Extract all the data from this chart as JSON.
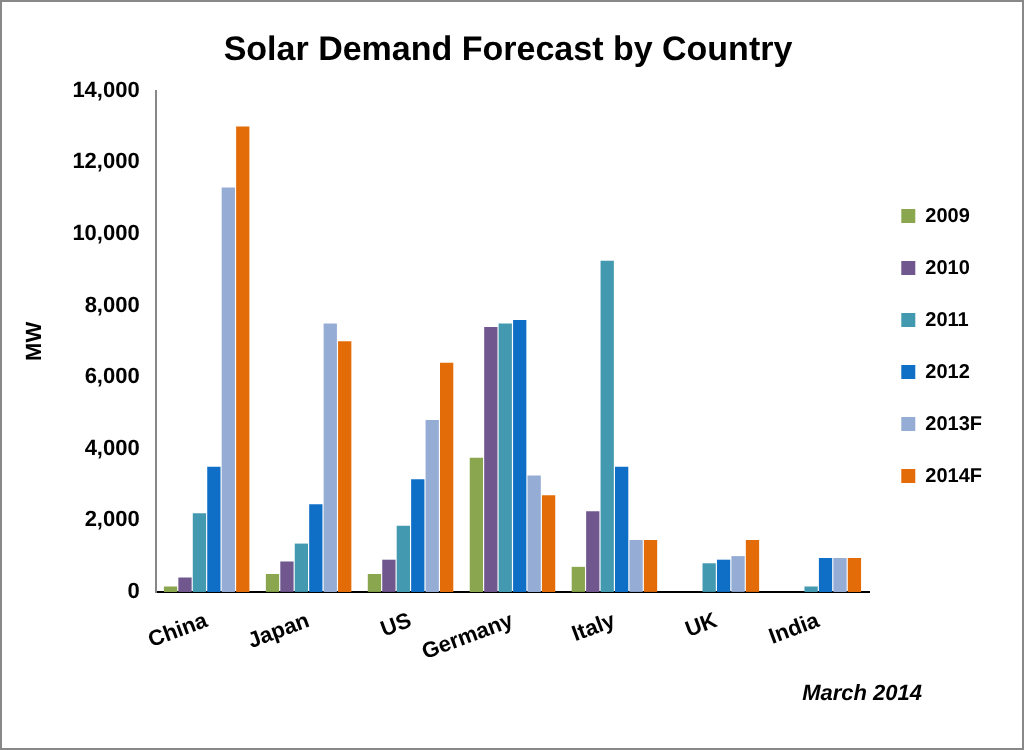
{
  "chart_data": {
    "type": "bar",
    "title": "Solar Demand Forecast by Country",
    "ylabel": "MW",
    "categories": [
      "China",
      "Japan",
      "US",
      "Germany",
      "Italy",
      "UK",
      "India"
    ],
    "series": [
      {
        "name": "2009",
        "color": "#8aa64e",
        "values": [
          150,
          500,
          500,
          3750,
          700,
          null,
          null
        ]
      },
      {
        "name": "2010",
        "color": "#70588f",
        "values": [
          400,
          850,
          900,
          7400,
          2250,
          null,
          null
        ]
      },
      {
        "name": "2011",
        "color": "#4399b0",
        "values": [
          2200,
          1350,
          1850,
          7500,
          9250,
          800,
          150
        ]
      },
      {
        "name": "2012",
        "color": "#0f6fc6",
        "values": [
          3500,
          2450,
          3150,
          7600,
          3500,
          900,
          950
        ]
      },
      {
        "name": "2013F",
        "color": "#95acd4",
        "values": [
          11300,
          7500,
          4800,
          3250,
          1450,
          1000,
          950
        ]
      },
      {
        "name": "2014F",
        "color": "#e36c09",
        "values": [
          13000,
          7000,
          6400,
          2700,
          1450,
          1450,
          950
        ]
      }
    ],
    "ylim": [
      0,
      14000
    ],
    "yticks": [
      {
        "value": 0,
        "label": "0"
      },
      {
        "value": 2000,
        "label": "2,000"
      },
      {
        "value": 4000,
        "label": "4,000"
      },
      {
        "value": 6000,
        "label": "6,000"
      },
      {
        "value": 8000,
        "label": "8,000"
      },
      {
        "value": 10000,
        "label": "10,000"
      },
      {
        "value": 12000,
        "label": "12,000"
      },
      {
        "value": 14000,
        "label": "14,000"
      }
    ],
    "grid": false,
    "legend": "right",
    "annotations": [
      "March 2014"
    ]
  }
}
